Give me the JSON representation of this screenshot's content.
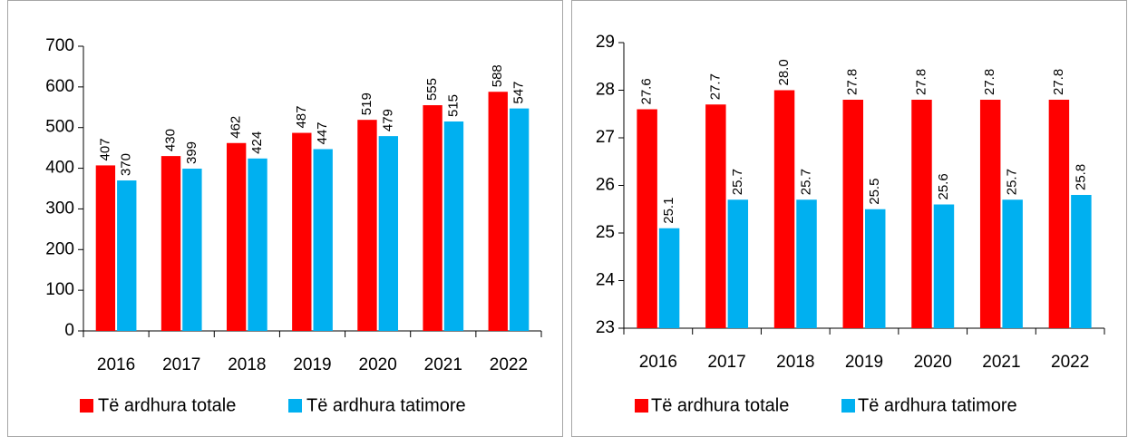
{
  "chart_data": [
    {
      "type": "bar",
      "categories": [
        "2016",
        "2017",
        "2018",
        "2019",
        "2020",
        "2021",
        "2022"
      ],
      "series": [
        {
          "name": "Të ardhura totale",
          "color": "#ff0000",
          "values": [
            407,
            430,
            462,
            487,
            519,
            555,
            588
          ]
        },
        {
          "name": "Të ardhura tatimore",
          "color": "#00b0f0",
          "values": [
            370,
            399,
            424,
            447,
            479,
            515,
            547
          ]
        }
      ],
      "ylim": [
        0,
        700
      ],
      "yticks": [
        0,
        100,
        200,
        300,
        400,
        500,
        600,
        700
      ],
      "legend": "bottom"
    },
    {
      "type": "bar",
      "categories": [
        "2016",
        "2017",
        "2018",
        "2019",
        "2020",
        "2021",
        "2022"
      ],
      "series": [
        {
          "name": "Të ardhura totale",
          "color": "#ff0000",
          "values": [
            27.6,
            27.7,
            28.0,
            27.8,
            27.8,
            27.8,
            27.8
          ],
          "value_labels": [
            "27.6",
            "27.7",
            "28.0",
            "27.8",
            "27.8",
            "27.8",
            "27.8"
          ]
        },
        {
          "name": "Të ardhura tatimore",
          "color": "#00b0f0",
          "values": [
            25.1,
            25.7,
            25.7,
            25.5,
            25.6,
            25.7,
            25.8
          ],
          "value_labels": [
            "25.1",
            "25.7",
            "25.7",
            "25.5",
            "25.6",
            "25.7",
            "25.8"
          ]
        }
      ],
      "ylim": [
        23,
        29
      ],
      "yticks": [
        23,
        24,
        25,
        26,
        27,
        28,
        29
      ],
      "legend": "bottom"
    }
  ]
}
